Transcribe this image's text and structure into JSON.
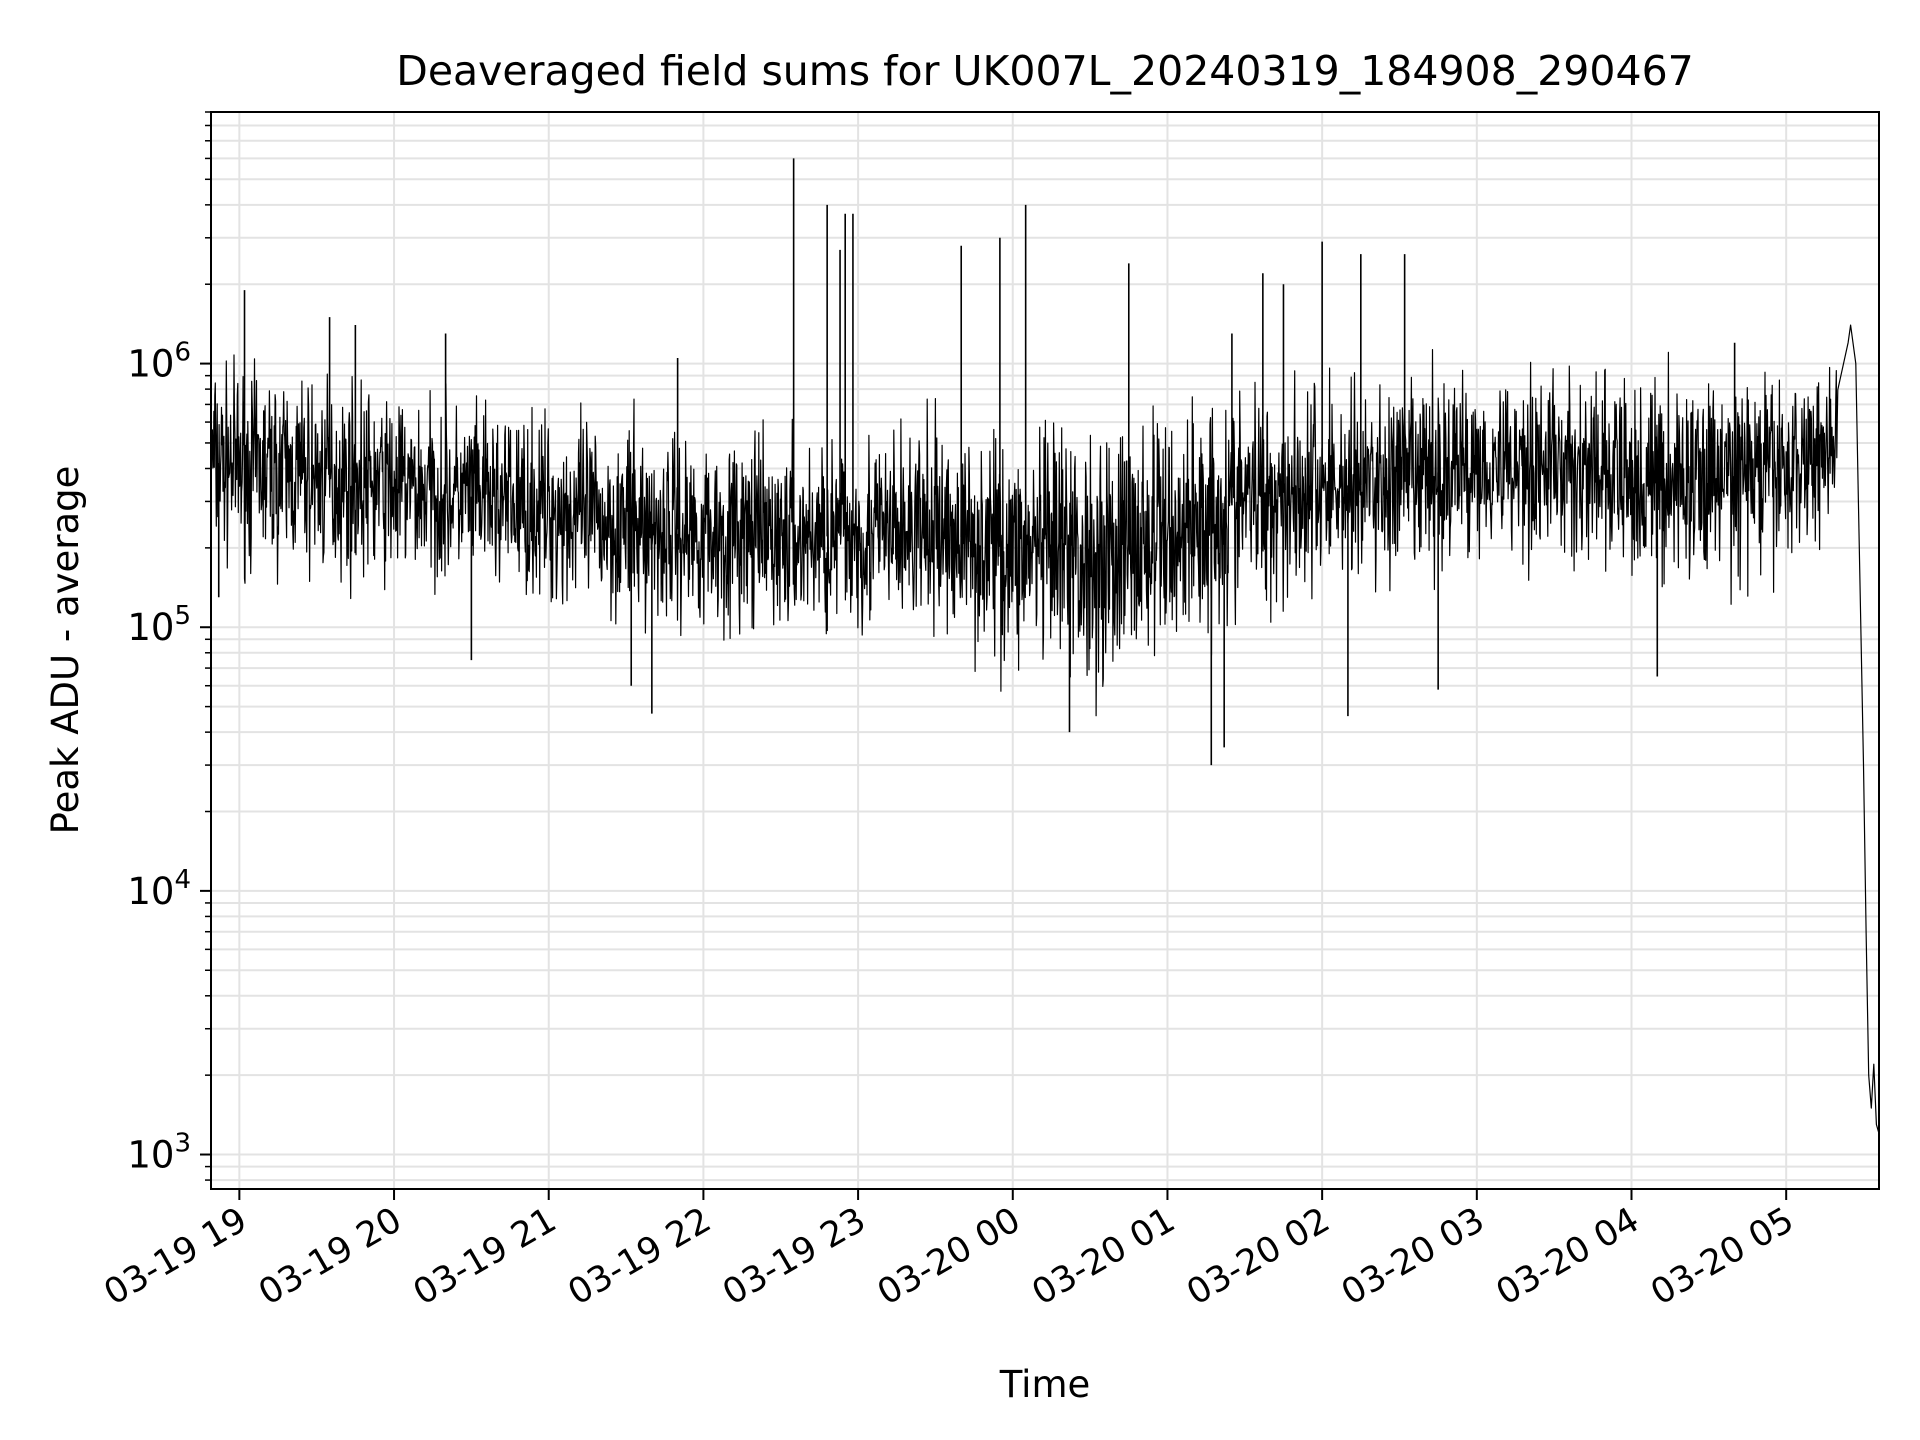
{
  "chart_data": {
    "type": "line",
    "title": "Deaveraged field sums for UK007L_20240319_184908_290467",
    "xlabel": "Time",
    "ylabel": "Peak ADU - average",
    "yscale": "log",
    "xlim": [
      "2024-03-19 18:49",
      "2024-03-20 05:36"
    ],
    "ylim": [
      740,
      9000000
    ],
    "grid": true,
    "line_color": "#000000",
    "x_ticks": [
      {
        "t": "2024-03-19 19:00",
        "label": "03-19 19"
      },
      {
        "t": "2024-03-19 20:00",
        "label": "03-19 20"
      },
      {
        "t": "2024-03-19 21:00",
        "label": "03-19 21"
      },
      {
        "t": "2024-03-19 22:00",
        "label": "03-19 22"
      },
      {
        "t": "2024-03-19 23:00",
        "label": "03-19 23"
      },
      {
        "t": "2024-03-20 00:00",
        "label": "03-20 00"
      },
      {
        "t": "2024-03-20 01:00",
        "label": "03-20 01"
      },
      {
        "t": "2024-03-20 02:00",
        "label": "03-20 02"
      },
      {
        "t": "2024-03-20 03:00",
        "label": "03-20 03"
      },
      {
        "t": "2024-03-20 04:00",
        "label": "03-20 04"
      },
      {
        "t": "2024-03-20 05:00",
        "label": "03-20 05"
      }
    ],
    "y_ticks": [
      {
        "value": 1000,
        "base": "10",
        "exp": "3"
      },
      {
        "value": 10000,
        "base": "10",
        "exp": "4"
      },
      {
        "value": 100000,
        "base": "10",
        "exp": "5"
      },
      {
        "value": 1000000,
        "base": "10",
        "exp": "6"
      }
    ],
    "series": [
      {
        "x": [
          "2024-03-19 18:49",
          "2024-03-19 18:53",
          "2024-03-19 18:56",
          "2024-03-19 18:59",
          "2024-03-19 19:03",
          "2024-03-19 19:06",
          "2024-03-19 19:10",
          "2024-03-19 19:15",
          "2024-03-19 19:20",
          "2024-03-19 19:25",
          "2024-03-19 19:30",
          "2024-03-19 19:35",
          "2024-03-19 19:40",
          "2024-03-19 19:45",
          "2024-03-19 19:50",
          "2024-03-19 19:55",
          "2024-03-19 20:00",
          "2024-03-19 20:10",
          "2024-03-19 20:20",
          "2024-03-19 20:30",
          "2024-03-19 20:35",
          "2024-03-19 20:45",
          "2024-03-19 21:00",
          "2024-03-19 21:15",
          "2024-03-19 21:30",
          "2024-03-19 21:35",
          "2024-03-19 21:45",
          "2024-03-19 22:00",
          "2024-03-19 22:15",
          "2024-03-19 22:30",
          "2024-03-19 22:35",
          "2024-03-19 22:45",
          "2024-03-19 22:55",
          "2024-03-19 23:00",
          "2024-03-19 23:15",
          "2024-03-19 23:30",
          "2024-03-19 23:40",
          "2024-03-19 23:50",
          "2024-03-20 00:00",
          "2024-03-20 00:15",
          "2024-03-20 00:25",
          "2024-03-20 00:35",
          "2024-03-20 00:45",
          "2024-03-20 01:00",
          "2024-03-20 01:15",
          "2024-03-20 01:30",
          "2024-03-20 01:45",
          "2024-03-20 02:00",
          "2024-03-20 02:10",
          "2024-03-20 02:25",
          "2024-03-20 02:35",
          "2024-03-20 02:45",
          "2024-03-20 03:00",
          "2024-03-20 03:15",
          "2024-03-20 03:30",
          "2024-03-20 03:45",
          "2024-03-20 04:00",
          "2024-03-20 04:15",
          "2024-03-20 04:30",
          "2024-03-20 04:45",
          "2024-03-20 05:00",
          "2024-03-20 05:10",
          "2024-03-20 05:20",
          "2024-03-20 05:24",
          "2024-03-20 05:25",
          "2024-03-20 05:27",
          "2024-03-20 05:28",
          "2024-03-20 05:30",
          "2024-03-20 05:31",
          "2024-03-20 05:32",
          "2024-03-20 05:33",
          "2024-03-20 05:34",
          "2024-03-20 05:35",
          "2024-03-20 05:36"
        ],
        "values": [
          800000,
          600000,
          1000000,
          450000,
          700000,
          350000,
          500000,
          400000,
          550000,
          450000,
          420000,
          380000,
          300000,
          280000,
          350000,
          320000,
          400000,
          380000,
          350000,
          420000,
          300000,
          350000,
          320000,
          300000,
          350000,
          280000,
          300000,
          320000,
          260000,
          280000,
          300000,
          250000,
          320000,
          350000,
          300000,
          280000,
          250000,
          280000,
          220000,
          150000,
          180000,
          200000,
          300000,
          400000,
          380000,
          420000,
          450000,
          500000,
          520000,
          480000,
          550000,
          500000,
          600000,
          550000,
          500000,
          480000,
          550000,
          450000,
          420000,
          400000,
          450000,
          500000,
          700000,
          1200000,
          1400000,
          1000000,
          300000,
          30000,
          7000,
          2000,
          1500,
          2200,
          1300,
          1200
        ]
      }
    ],
    "noise_band": {
      "x": [
        "2024-03-19 18:49",
        "2024-03-19 19:30",
        "2024-03-19 20:30",
        "2024-03-19 21:30",
        "2024-03-19 22:30",
        "2024-03-19 23:30",
        "2024-03-20 00:00",
        "2024-03-20 00:30",
        "2024-03-20 01:00",
        "2024-03-20 01:30",
        "2024-03-20 02:00",
        "2024-03-20 02:30",
        "2024-03-20 03:00",
        "2024-03-20 03:30",
        "2024-03-20 04:00",
        "2024-03-20 04:30",
        "2024-03-20 05:00",
        "2024-03-20 05:20"
      ],
      "low": [
        180000,
        150000,
        140000,
        100000,
        90000,
        90000,
        70000,
        55000,
        70000,
        110000,
        130000,
        130000,
        180000,
        180000,
        130000,
        150000,
        160000,
        250000
      ],
      "high": [
        1000000,
        900000,
        700000,
        600000,
        520000,
        600000,
        550000,
        600000,
        700000,
        850000,
        900000,
        950000,
        1000000,
        950000,
        950000,
        900000,
        950000,
        1200000
      ]
    },
    "spikes": [
      {
        "t": "2024-03-19 18:52",
        "value": 130000
      },
      {
        "t": "2024-03-19 19:02",
        "value": 1900000
      },
      {
        "t": "2024-03-19 19:35",
        "value": 1500000
      },
      {
        "t": "2024-03-19 19:45",
        "value": 1400000
      },
      {
        "t": "2024-03-19 20:20",
        "value": 1300000
      },
      {
        "t": "2024-03-19 20:30",
        "value": 75000
      },
      {
        "t": "2024-03-19 21:32",
        "value": 60000
      },
      {
        "t": "2024-03-19 21:40",
        "value": 47000
      },
      {
        "t": "2024-03-19 21:50",
        "value": 1050000
      },
      {
        "t": "2024-03-19 22:35",
        "value": 6000000
      },
      {
        "t": "2024-03-19 22:48",
        "value": 4000000
      },
      {
        "t": "2024-03-19 22:55",
        "value": 3700000
      },
      {
        "t": "2024-03-19 22:58",
        "value": 3700000
      },
      {
        "t": "2024-03-19 22:53",
        "value": 2700000
      },
      {
        "t": "2024-03-19 23:40",
        "value": 2800000
      },
      {
        "t": "2024-03-19 23:55",
        "value": 3000000
      },
      {
        "t": "2024-03-20 00:05",
        "value": 4000000
      },
      {
        "t": "2024-03-20 00:22",
        "value": 40000
      },
      {
        "t": "2024-03-20 00:45",
        "value": 2400000
      },
      {
        "t": "2024-03-20 01:17",
        "value": 30000
      },
      {
        "t": "2024-03-20 01:22",
        "value": 35000
      },
      {
        "t": "2024-03-20 01:25",
        "value": 1300000
      },
      {
        "t": "2024-03-20 01:37",
        "value": 2200000
      },
      {
        "t": "2024-03-20 01:45",
        "value": 2000000
      },
      {
        "t": "2024-03-20 02:00",
        "value": 2900000
      },
      {
        "t": "2024-03-20 02:10",
        "value": 46000
      },
      {
        "t": "2024-03-20 02:15",
        "value": 2600000
      },
      {
        "t": "2024-03-20 02:32",
        "value": 2600000
      },
      {
        "t": "2024-03-20 02:45",
        "value": 58000
      },
      {
        "t": "2024-03-20 04:10",
        "value": 65000
      },
      {
        "t": "2024-03-20 04:40",
        "value": 1200000
      }
    ]
  }
}
